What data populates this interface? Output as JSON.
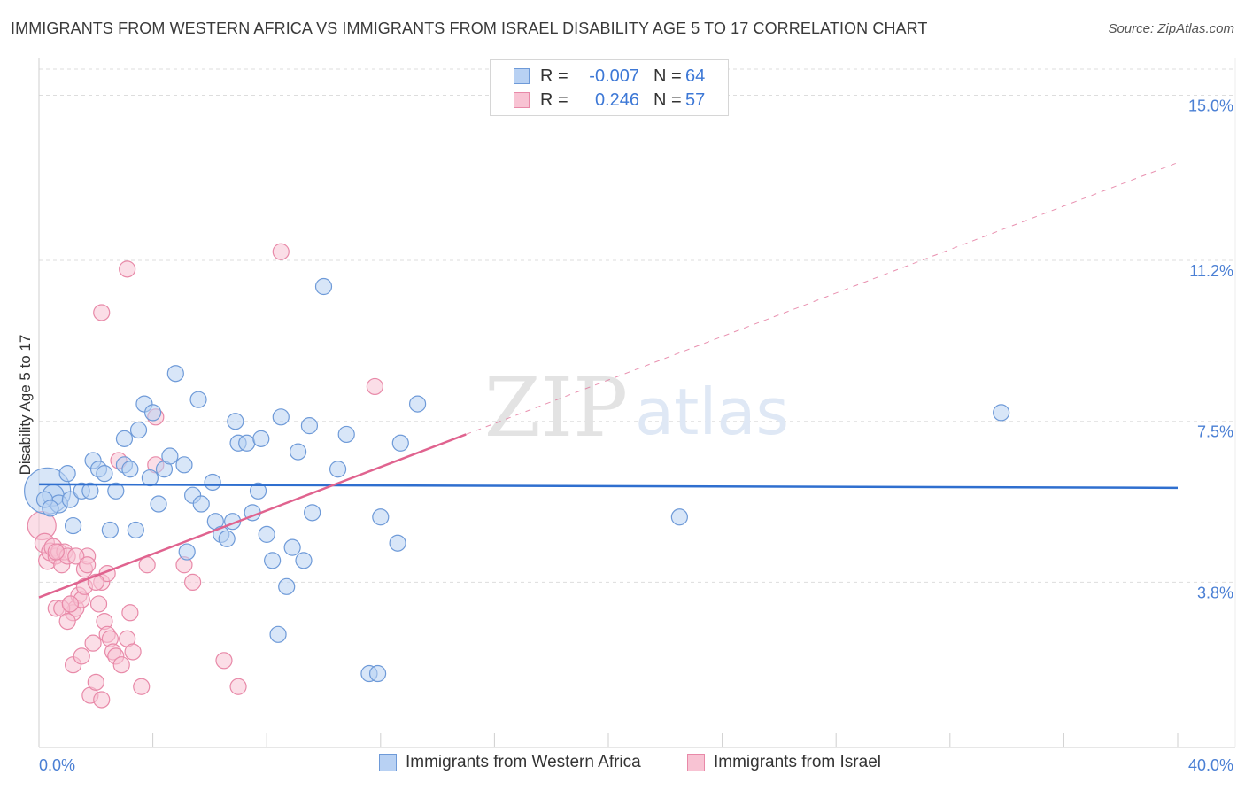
{
  "title": "IMMIGRANTS FROM WESTERN AFRICA VS IMMIGRANTS FROM ISRAEL DISABILITY AGE 5 TO 17 CORRELATION CHART",
  "source": "Source: ZipAtlas.com",
  "watermark": {
    "zip": "ZIP",
    "atlas": "atlas"
  },
  "legend_top": [
    {
      "r_label": "R =",
      "r_value": "-0.007",
      "n_label": "N =",
      "n_value": "64"
    },
    {
      "r_label": "R =",
      "r_value": "0.246",
      "n_label": "N =",
      "n_value": "57"
    }
  ],
  "legend_bottom": [
    {
      "label": "Immigrants from Western Africa"
    },
    {
      "label": "Immigrants from Israel"
    }
  ],
  "colors": {
    "blue_fill": "#b8d1f3",
    "blue_stroke": "#6e9ad8",
    "blue_line": "#2f6fcf",
    "pink_fill": "#f8c3d3",
    "pink_stroke": "#e889a8",
    "pink_line": "#e0638f",
    "tick_text": "#4a7fd4",
    "grid": "#dddddd"
  },
  "chart_data": {
    "type": "scatter",
    "title": "IMMIGRANTS FROM WESTERN AFRICA VS IMMIGRANTS FROM ISRAEL DISABILITY AGE 5 TO 17 CORRELATION CHART",
    "xlabel": "",
    "ylabel": "Disability Age 5 to 17",
    "xlim": [
      0,
      40
    ],
    "ylim": [
      0,
      15.6
    ],
    "x_tick_labels": [
      {
        "value": 0,
        "label": "0.0%"
      },
      {
        "value": 40,
        "label": "40.0%"
      }
    ],
    "y_tick_labels": [
      {
        "value": 3.8,
        "label": "3.8%"
      },
      {
        "value": 7.5,
        "label": "7.5%"
      },
      {
        "value": 11.2,
        "label": "11.2%"
      },
      {
        "value": 15.0,
        "label": "15.0%"
      }
    ],
    "grid": true,
    "legend_position": "top-center",
    "series": [
      {
        "name": "Immigrants from Western Africa",
        "r": -0.007,
        "n": 64,
        "trend": {
          "x": [
            0,
            40
          ],
          "y": [
            6.05,
            5.97
          ],
          "style": "solid"
        },
        "points": [
          [
            0.3,
            5.9,
            26
          ],
          [
            0.5,
            5.8,
            12
          ],
          [
            0.7,
            5.6,
            10
          ],
          [
            1.0,
            6.3,
            9
          ],
          [
            1.1,
            5.7,
            9
          ],
          [
            1.2,
            5.1,
            9
          ],
          [
            1.5,
            5.9,
            9
          ],
          [
            1.8,
            5.9,
            9
          ],
          [
            1.9,
            6.6,
            9
          ],
          [
            2.1,
            6.4,
            9
          ],
          [
            2.3,
            6.3,
            9
          ],
          [
            2.5,
            5.0,
            9
          ],
          [
            2.7,
            5.9,
            9
          ],
          [
            3.0,
            6.5,
            9
          ],
          [
            3.0,
            7.1,
            9
          ],
          [
            3.2,
            6.4,
            9
          ],
          [
            3.4,
            5.0,
            9
          ],
          [
            3.5,
            7.3,
            9
          ],
          [
            3.7,
            7.9,
            9
          ],
          [
            3.9,
            6.2,
            9
          ],
          [
            4.0,
            7.7,
            9
          ],
          [
            4.2,
            5.6,
            9
          ],
          [
            4.4,
            6.4,
            9
          ],
          [
            4.6,
            6.7,
            9
          ],
          [
            4.8,
            8.6,
            9
          ],
          [
            5.1,
            6.5,
            9
          ],
          [
            5.2,
            4.5,
            9
          ],
          [
            5.4,
            5.8,
            9
          ],
          [
            5.6,
            8.0,
            9
          ],
          [
            5.7,
            5.6,
            9
          ],
          [
            6.1,
            6.1,
            9
          ],
          [
            6.2,
            5.2,
            9
          ],
          [
            6.4,
            4.9,
            9
          ],
          [
            6.6,
            4.8,
            9
          ],
          [
            6.8,
            5.2,
            9
          ],
          [
            6.9,
            7.5,
            9
          ],
          [
            7.0,
            7.0,
            9
          ],
          [
            7.3,
            7.0,
            9
          ],
          [
            7.5,
            5.4,
            9
          ],
          [
            7.7,
            5.9,
            9
          ],
          [
            7.8,
            7.1,
            9
          ],
          [
            8.0,
            4.9,
            9
          ],
          [
            8.2,
            4.3,
            9
          ],
          [
            8.5,
            7.6,
            9
          ],
          [
            8.7,
            3.7,
            9
          ],
          [
            8.9,
            4.6,
            9
          ],
          [
            9.1,
            6.8,
            9
          ],
          [
            9.3,
            4.3,
            9
          ],
          [
            9.5,
            7.4,
            9
          ],
          [
            9.6,
            5.4,
            9
          ],
          [
            10.0,
            10.6,
            9
          ],
          [
            10.5,
            6.4,
            9
          ],
          [
            10.8,
            7.2,
            9
          ],
          [
            11.6,
            1.7,
            9
          ],
          [
            11.9,
            1.7,
            9
          ],
          [
            12.0,
            5.3,
            9
          ],
          [
            12.6,
            4.7,
            9
          ],
          [
            12.7,
            7.0,
            9
          ],
          [
            13.3,
            7.9,
            9
          ],
          [
            8.4,
            2.6,
            9
          ],
          [
            22.5,
            5.3,
            9
          ],
          [
            33.8,
            7.7,
            9
          ],
          [
            0.2,
            5.7,
            9
          ],
          [
            0.4,
            5.5,
            9
          ]
        ]
      },
      {
        "name": "Immigrants from Israel",
        "r": 0.246,
        "n": 57,
        "trend": {
          "x": [
            0,
            15
          ],
          "y": [
            3.45,
            7.2
          ],
          "style": "solid",
          "extended_to": {
            "x": 40,
            "y": 13.45,
            "style": "dashed"
          }
        },
        "points": [
          [
            0.1,
            5.1,
            16
          ],
          [
            0.2,
            4.7,
            11
          ],
          [
            0.3,
            4.3,
            10
          ],
          [
            0.4,
            4.5,
            10
          ],
          [
            0.5,
            4.6,
            10
          ],
          [
            0.6,
            4.4,
            9
          ],
          [
            0.7,
            4.5,
            9
          ],
          [
            0.8,
            4.2,
            9
          ],
          [
            0.9,
            4.5,
            9
          ],
          [
            1.0,
            4.4,
            9
          ],
          [
            1.1,
            3.3,
            9
          ],
          [
            1.2,
            3.1,
            9
          ],
          [
            1.3,
            3.2,
            9
          ],
          [
            1.4,
            3.5,
            9
          ],
          [
            0.6,
            3.2,
            9
          ],
          [
            0.8,
            3.2,
            9
          ],
          [
            1.0,
            2.9,
            9
          ],
          [
            1.2,
            1.9,
            9
          ],
          [
            1.5,
            3.4,
            9
          ],
          [
            1.6,
            3.7,
            9
          ],
          [
            1.6,
            4.1,
            9
          ],
          [
            1.7,
            4.4,
            9
          ],
          [
            1.8,
            1.2,
            9
          ],
          [
            1.9,
            2.4,
            9
          ],
          [
            2.0,
            1.5,
            9
          ],
          [
            2.1,
            3.3,
            9
          ],
          [
            2.2,
            1.1,
            9
          ],
          [
            2.2,
            3.8,
            9
          ],
          [
            2.3,
            2.9,
            9
          ],
          [
            2.4,
            2.6,
            9
          ],
          [
            2.4,
            4.0,
            9
          ],
          [
            2.5,
            2.5,
            9
          ],
          [
            2.6,
            2.2,
            9
          ],
          [
            2.7,
            2.1,
            9
          ],
          [
            2.8,
            6.6,
            9
          ],
          [
            2.9,
            1.9,
            9
          ],
          [
            3.1,
            2.5,
            9
          ],
          [
            3.2,
            3.1,
            9
          ],
          [
            3.3,
            2.2,
            9
          ],
          [
            3.6,
            1.4,
            9
          ],
          [
            3.8,
            4.2,
            9
          ],
          [
            4.1,
            7.6,
            9
          ],
          [
            4.1,
            6.5,
            9
          ],
          [
            5.1,
            4.2,
            9
          ],
          [
            5.4,
            3.8,
            9
          ],
          [
            6.5,
            2.0,
            9
          ],
          [
            7.0,
            1.4,
            9
          ],
          [
            8.5,
            11.4,
            9
          ],
          [
            11.8,
            8.3,
            9
          ],
          [
            2.2,
            10.0,
            9
          ],
          [
            3.1,
            11.0,
            9
          ],
          [
            1.1,
            3.3,
            9
          ],
          [
            0.6,
            4.5,
            9
          ],
          [
            1.3,
            4.4,
            9
          ],
          [
            1.5,
            2.1,
            9
          ],
          [
            1.7,
            4.2,
            9
          ],
          [
            2.0,
            3.8,
            9
          ]
        ]
      }
    ]
  }
}
